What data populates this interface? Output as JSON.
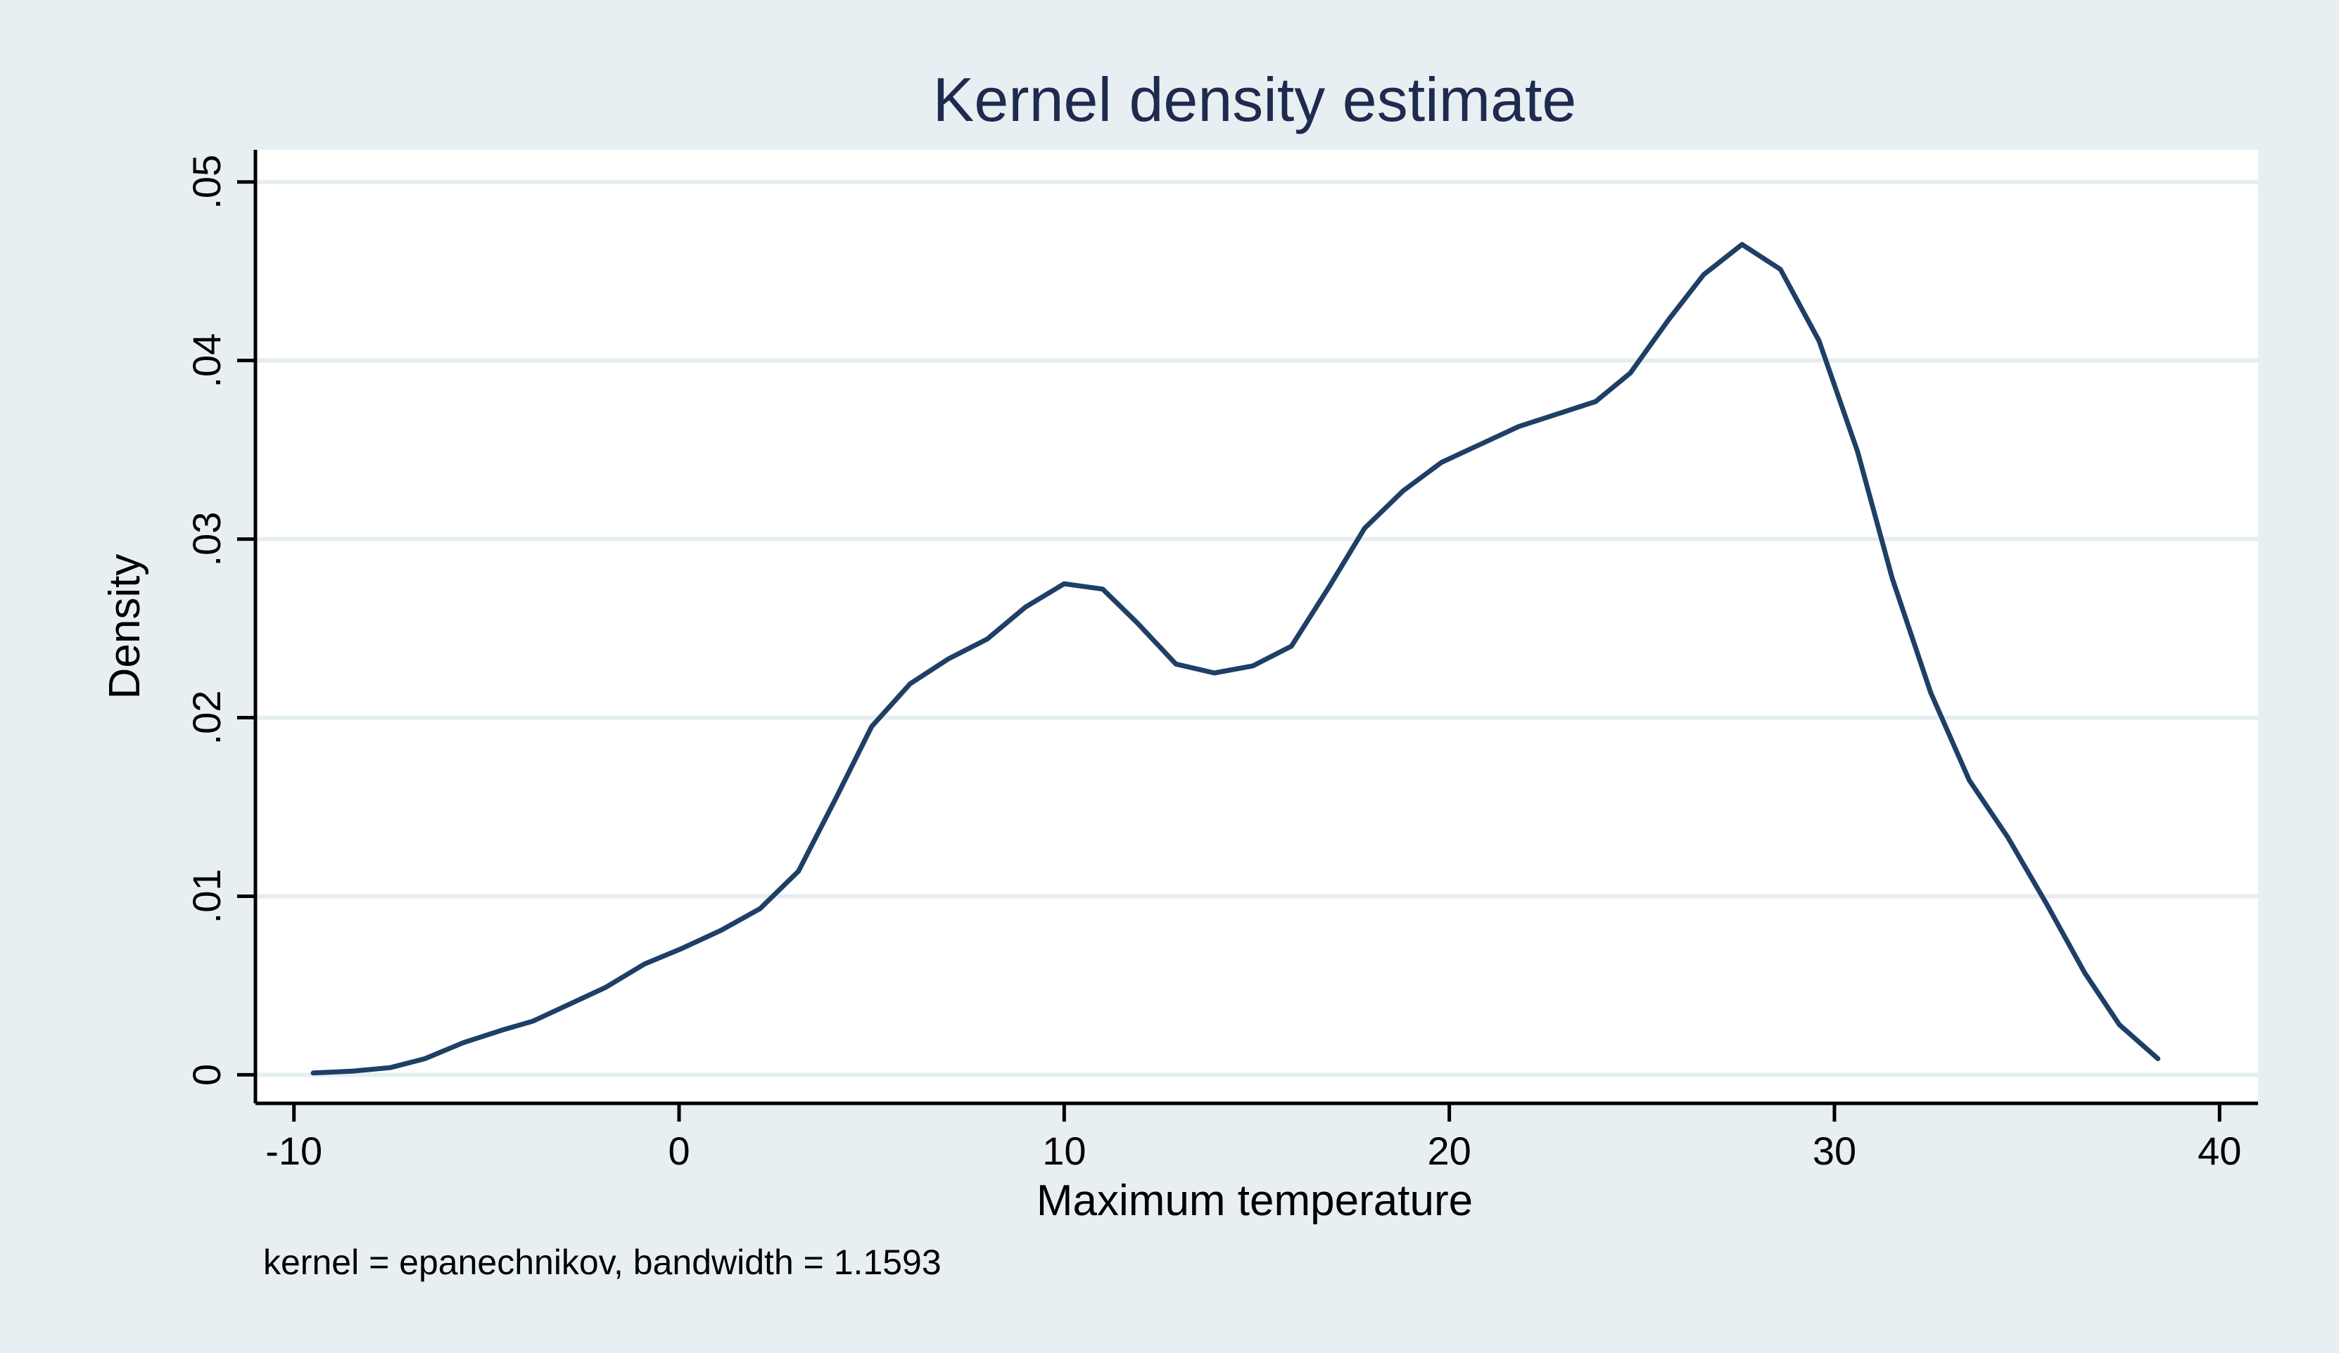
{
  "chart_data": {
    "type": "line",
    "title": "Kernel density estimate",
    "xlabel": "Maximum temperature",
    "ylabel": "Density",
    "note": "kernel = epanechnikov, bandwidth = 1.1593",
    "xlim": [
      -11,
      41
    ],
    "ylim": [
      -0.0016,
      0.0518
    ],
    "xticks": [
      -10,
      0,
      10,
      20,
      30,
      40
    ],
    "xtick_labels": [
      "-10",
      "0",
      "10",
      "20",
      "30",
      "40"
    ],
    "yticks": [
      0,
      0.01,
      0.02,
      0.03,
      0.04,
      0.05
    ],
    "ytick_labels": [
      "0",
      ".01",
      ".02",
      ".03",
      ".04",
      ".05"
    ],
    "grid": true,
    "colors": {
      "outer_background": "#e8eff2",
      "plot_background": "#ffffff",
      "grid": "#e5edf1",
      "line": "#1e3f66",
      "title": "#1e2a4e",
      "text": "#000000"
    },
    "series": [
      {
        "name": "density",
        "x": [
          -9.5,
          -8.5,
          -7.5,
          -6.6,
          -5.6,
          -4.6,
          -3.8,
          -2.8,
          -1.9,
          -0.9,
          0.1,
          1.1,
          2.1,
          3.1,
          4.1,
          5.0,
          6.0,
          7.0,
          8.0,
          9.0,
          10.0,
          11.0,
          11.9,
          12.9,
          13.9,
          14.9,
          15.9,
          16.9,
          17.8,
          18.8,
          19.8,
          20.8,
          21.8,
          22.8,
          23.8,
          24.7,
          25.7,
          26.6,
          27.6,
          28.6,
          29.6,
          30.6,
          31.5,
          32.5,
          33.5,
          34.5,
          35.5,
          36.5,
          37.4,
          38.4
        ],
        "values": [
          0.0001,
          0.0002,
          0.0004,
          0.0009,
          0.0018,
          0.0025,
          0.003,
          0.004,
          0.0049,
          0.0062,
          0.0071,
          0.0081,
          0.0093,
          0.0114,
          0.0156,
          0.0195,
          0.0219,
          0.0233,
          0.0244,
          0.0262,
          0.0275,
          0.0272,
          0.0253,
          0.023,
          0.0225,
          0.0229,
          0.024,
          0.0274,
          0.0306,
          0.0327,
          0.0343,
          0.0353,
          0.0363,
          0.037,
          0.0377,
          0.0393,
          0.0423,
          0.0448,
          0.0465,
          0.0451,
          0.0411,
          0.0349,
          0.0278,
          0.0214,
          0.0165,
          0.0133,
          0.0096,
          0.0057,
          0.0028,
          0.0009
        ]
      }
    ]
  }
}
